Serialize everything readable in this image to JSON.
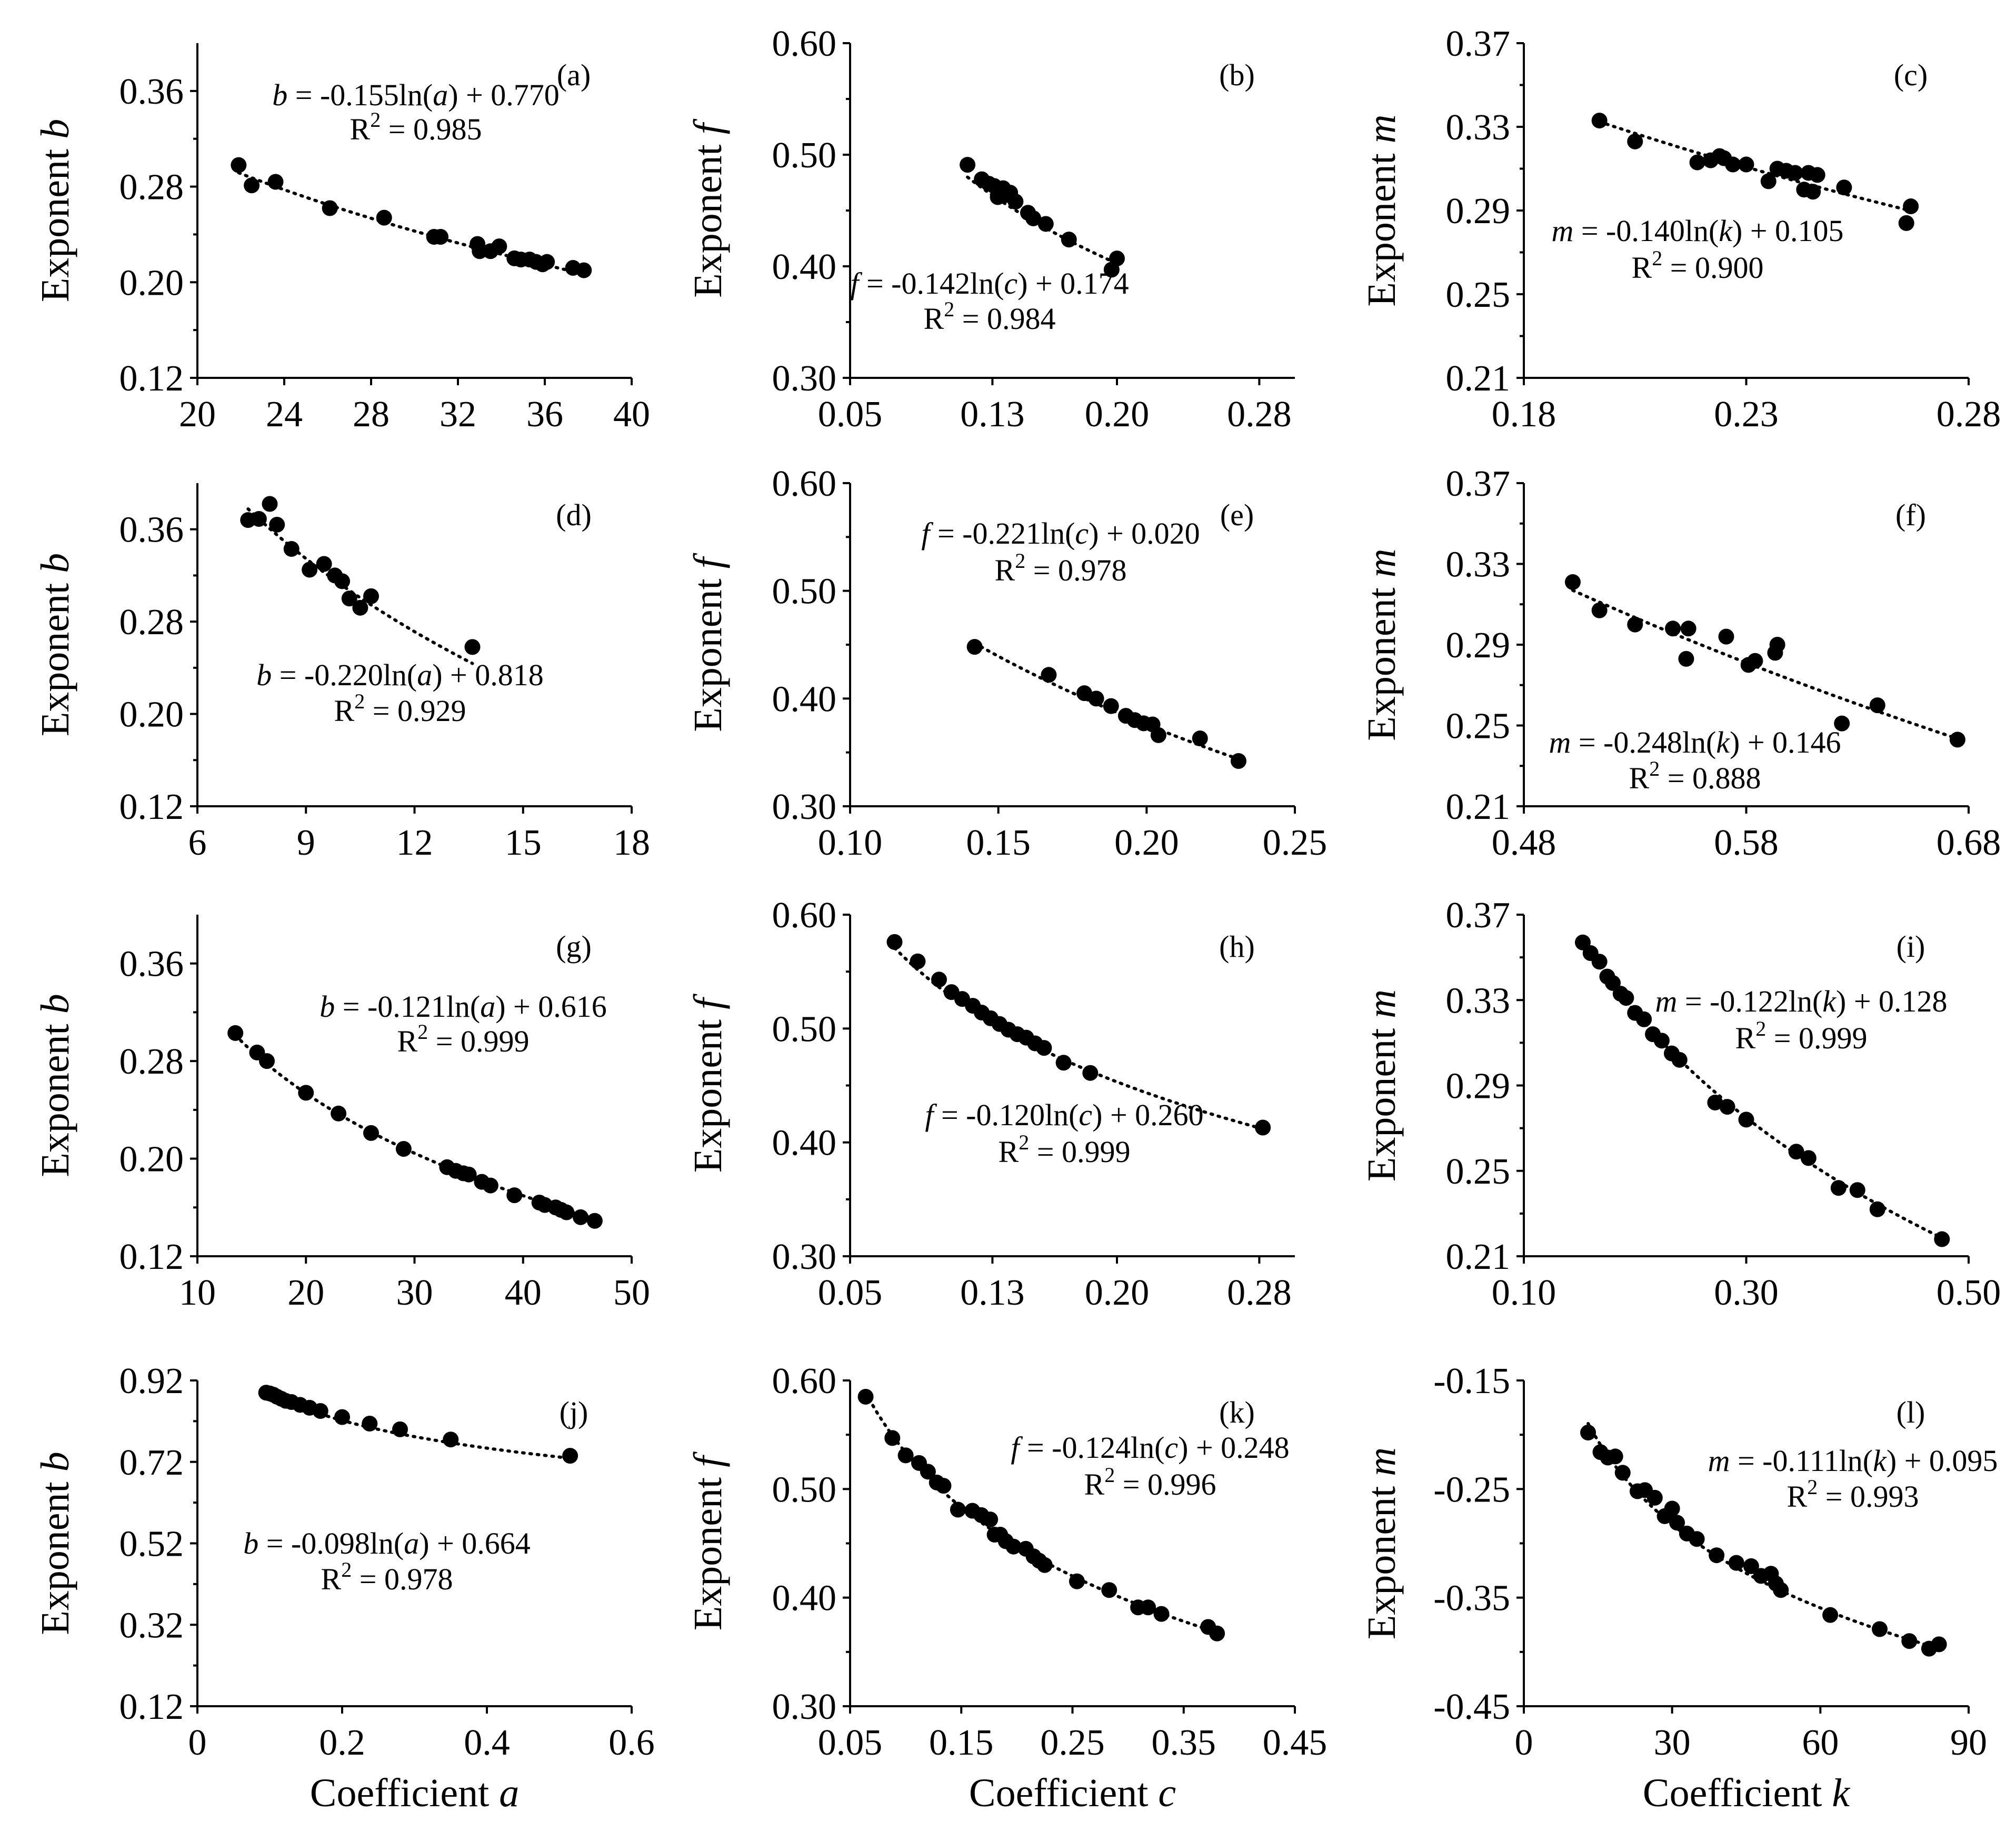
{
  "chart_data": [
    {
      "id": "a",
      "type": "scatter",
      "label": "(a)",
      "xlabel": "",
      "ylabel": "Exponent",
      "ylabel_var": "b",
      "xlim": [
        20,
        40
      ],
      "xticks": [
        20,
        24,
        28,
        32,
        36,
        40
      ],
      "xdecimals": 0,
      "ylim": [
        0.12,
        0.4
      ],
      "yticks": [
        0.12,
        0.2,
        0.28,
        0.36
      ],
      "ydecimals": 2,
      "x": [
        21.9,
        22.5,
        23.6,
        26.1,
        28.6,
        30.9,
        31.2,
        32.9,
        33.0,
        33.5,
        33.9,
        34.6,
        34.9,
        35.3,
        35.6,
        35.9,
        36.1,
        37.3,
        37.8
      ],
      "y": [
        0.298,
        0.281,
        0.284,
        0.262,
        0.254,
        0.238,
        0.238,
        0.232,
        0.226,
        0.226,
        0.23,
        0.22,
        0.219,
        0.219,
        0.217,
        0.215,
        0.217,
        0.212,
        0.21
      ],
      "fit": {
        "var": "b",
        "arg": "a",
        "coef": "-0.155",
        "intercept": "+ 0.770",
        "r2": "0.985",
        "c1": -0.155,
        "c0": 0.77
      },
      "equation": {
        "lhs": "b",
        "mid": " = -0.155ln(",
        "arg": "a",
        "rhs": ")  + 0.770",
        "r2": "R",
        "r2sup": "2",
        "r2val": " = 0.985"
      }
    },
    {
      "id": "b",
      "type": "scatter",
      "label": "(b)",
      "xlabel": "",
      "ylabel": "Exponent",
      "ylabel_var": "f",
      "xlim": [
        0.05,
        0.3
      ],
      "xticks": [
        0.05,
        0.13,
        0.2,
        0.28
      ],
      "xdecimals": 2,
      "ylim": [
        0.3,
        0.6
      ],
      "yticks": [
        0.3,
        0.4,
        0.5,
        0.6
      ],
      "ydecimals": 2,
      "x": [
        0.116,
        0.124,
        0.128,
        0.131,
        0.133,
        0.136,
        0.138,
        0.14,
        0.143,
        0.15,
        0.153,
        0.16,
        0.173,
        0.197,
        0.2
      ],
      "y": [
        0.491,
        0.478,
        0.474,
        0.472,
        0.462,
        0.47,
        0.464,
        0.466,
        0.458,
        0.448,
        0.443,
        0.438,
        0.424,
        0.397,
        0.407
      ],
      "fit": {
        "c1": -0.142,
        "c0": 0.174
      },
      "equation": {
        "lhs": "f",
        "mid": " = -0.142ln(",
        "arg": "c",
        "rhs": ")  + 0.174",
        "r2": "R",
        "r2sup": "2",
        "r2val": " = 0.984"
      }
    },
    {
      "id": "c",
      "type": "scatter",
      "label": "(c)",
      "xlabel": "",
      "ylabel": "Exponent",
      "ylabel_var": "m",
      "xlim": [
        0.18,
        0.28
      ],
      "xticks": [
        0.18,
        0.23,
        0.28
      ],
      "xdecimals": 2,
      "ylim": [
        0.21,
        0.37
      ],
      "yticks": [
        0.21,
        0.25,
        0.29,
        0.33,
        0.37
      ],
      "ydecimals": 2,
      "x": [
        0.197,
        0.205,
        0.219,
        0.222,
        0.224,
        0.225,
        0.227,
        0.23,
        0.235,
        0.237,
        0.239,
        0.241,
        0.243,
        0.244,
        0.245,
        0.246,
        0.252,
        0.266,
        0.267
      ],
      "y": [
        0.333,
        0.323,
        0.313,
        0.314,
        0.316,
        0.315,
        0.312,
        0.312,
        0.304,
        0.31,
        0.309,
        0.308,
        0.3,
        0.308,
        0.299,
        0.307,
        0.301,
        0.284,
        0.292
      ],
      "fit": {
        "c1": -0.14,
        "c0": 0.105
      },
      "equation": {
        "lhs": "m",
        "mid": " = -0.140ln(",
        "arg": "k",
        "rhs": ")  + 0.105",
        "r2": "R",
        "r2sup": "2",
        "r2val": " = 0.900"
      }
    },
    {
      "id": "d",
      "type": "scatter",
      "label": "(d)",
      "xlabel": "",
      "ylabel": "Exponent",
      "ylabel_var": "b",
      "xlim": [
        6,
        18
      ],
      "xticks": [
        6,
        9,
        12,
        15,
        18
      ],
      "xdecimals": 0,
      "ylim": [
        0.12,
        0.4
      ],
      "yticks": [
        0.12,
        0.2,
        0.28,
        0.36
      ],
      "ydecimals": 2,
      "x": [
        7.4,
        7.7,
        8.0,
        8.2,
        8.6,
        9.1,
        9.5,
        9.8,
        10.0,
        10.2,
        10.5,
        10.8,
        13.6
      ],
      "y": [
        0.368,
        0.369,
        0.382,
        0.364,
        0.343,
        0.325,
        0.33,
        0.32,
        0.315,
        0.3,
        0.292,
        0.302,
        0.258
      ],
      "fit": {
        "c1": -0.22,
        "c0": 0.818
      },
      "equation": {
        "lhs": "b",
        "mid": " = -0.220ln(",
        "arg": "a",
        "rhs": ")  + 0.818",
        "r2": "R",
        "r2sup": "2",
        "r2val": " = 0.929"
      }
    },
    {
      "id": "e",
      "type": "scatter",
      "label": "(e)",
      "xlabel": "",
      "ylabel": "Exponent",
      "ylabel_var": "f",
      "xlim": [
        0.1,
        0.25
      ],
      "xticks": [
        0.1,
        0.15,
        0.2,
        0.25
      ],
      "xdecimals": 2,
      "ylim": [
        0.3,
        0.6
      ],
      "yticks": [
        0.3,
        0.4,
        0.5,
        0.6
      ],
      "ydecimals": 2,
      "x": [
        0.142,
        0.167,
        0.179,
        0.183,
        0.188,
        0.193,
        0.196,
        0.199,
        0.202,
        0.204,
        0.218,
        0.231
      ],
      "y": [
        0.448,
        0.422,
        0.405,
        0.4,
        0.393,
        0.384,
        0.38,
        0.377,
        0.376,
        0.366,
        0.363,
        0.342
      ],
      "fit": {
        "c1": -0.221,
        "c0": 0.02
      },
      "equation": {
        "lhs": "f",
        "mid": " = -0.221ln(",
        "arg": "c",
        "rhs": ")  + 0.020",
        "r2": "R",
        "r2sup": "2",
        "r2val": " = 0.978"
      }
    },
    {
      "id": "f",
      "type": "scatter",
      "label": "(f)",
      "xlabel": "",
      "ylabel": "Exponent",
      "ylabel_var": "m",
      "xlim": [
        0.48,
        0.68
      ],
      "xticks": [
        0.48,
        0.58,
        0.68
      ],
      "xdecimals": 2,
      "ylim": [
        0.21,
        0.37
      ],
      "yticks": [
        0.21,
        0.25,
        0.29,
        0.33,
        0.37
      ],
      "ydecimals": 2,
      "x": [
        0.502,
        0.514,
        0.53,
        0.547,
        0.553,
        0.554,
        0.571,
        0.581,
        0.584,
        0.593,
        0.594,
        0.623,
        0.639,
        0.675
      ],
      "y": [
        0.321,
        0.307,
        0.3,
        0.298,
        0.283,
        0.298,
        0.294,
        0.28,
        0.282,
        0.286,
        0.29,
        0.251,
        0.26,
        0.243
      ],
      "fit": {
        "c1": -0.248,
        "c0": 0.146
      },
      "equation": {
        "lhs": "m",
        "mid": " = -0.248ln(",
        "arg": "k",
        "rhs": ")  + 0.146",
        "r2": "R",
        "r2sup": "2",
        "r2val": " = 0.888"
      }
    },
    {
      "id": "g",
      "type": "scatter",
      "label": "(g)",
      "xlabel": "",
      "ylabel": "Exponent",
      "ylabel_var": "b",
      "xlim": [
        10,
        50
      ],
      "xticks": [
        10,
        20,
        30,
        40,
        50
      ],
      "xdecimals": 0,
      "ylim": [
        0.12,
        0.4
      ],
      "yticks": [
        0.12,
        0.2,
        0.28,
        0.36
      ],
      "ydecimals": 2,
      "x": [
        13.5,
        15.5,
        16.4,
        20.0,
        23.0,
        26.0,
        29.0,
        33.0,
        33.8,
        34.5,
        35.0,
        36.2,
        37.0,
        39.2,
        41.5,
        42.0,
        43.0,
        43.5,
        44.0,
        45.3,
        46.6
      ],
      "y": [
        0.303,
        0.287,
        0.28,
        0.254,
        0.237,
        0.221,
        0.208,
        0.193,
        0.19,
        0.188,
        0.187,
        0.181,
        0.178,
        0.17,
        0.164,
        0.162,
        0.16,
        0.158,
        0.156,
        0.152,
        0.149
      ],
      "fit": {
        "c1": -0.121,
        "c0": 0.616
      },
      "equation": {
        "lhs": "b",
        "mid": " = -0.121ln(",
        "arg": "a",
        "rhs": ")  + 0.616",
        "r2": "R",
        "r2sup": "2",
        "r2val": " = 0.999"
      }
    },
    {
      "id": "h",
      "type": "scatter",
      "label": "(h)",
      "xlabel": "",
      "ylabel": "Exponent",
      "ylabel_var": "f",
      "xlim": [
        0.05,
        0.3
      ],
      "xticks": [
        0.05,
        0.13,
        0.2,
        0.28
      ],
      "xdecimals": 2,
      "ylim": [
        0.3,
        0.6
      ],
      "yticks": [
        0.3,
        0.4,
        0.5,
        0.6
      ],
      "ydecimals": 2,
      "x": [
        0.075,
        0.088,
        0.1,
        0.107,
        0.113,
        0.119,
        0.124,
        0.129,
        0.134,
        0.139,
        0.144,
        0.149,
        0.154,
        0.159,
        0.17,
        0.185,
        0.282
      ],
      "y": [
        0.576,
        0.559,
        0.543,
        0.532,
        0.526,
        0.52,
        0.514,
        0.509,
        0.504,
        0.499,
        0.495,
        0.492,
        0.487,
        0.483,
        0.47,
        0.461,
        0.413
      ],
      "fit": {
        "c1": -0.12,
        "c0": 0.26
      },
      "equation": {
        "lhs": "f",
        "mid": " = -0.120ln(",
        "arg": "c",
        "rhs": ")  + 0.260",
        "r2": "R",
        "r2sup": "2",
        "r2val": " = 0.999"
      }
    },
    {
      "id": "i",
      "type": "scatter",
      "label": "(i)",
      "xlabel": "",
      "ylabel": "Exponent",
      "ylabel_var": "m",
      "xlim": [
        0.1,
        0.5
      ],
      "xticks": [
        0.1,
        0.3,
        0.5
      ],
      "xdecimals": 2,
      "ylim": [
        0.21,
        0.37
      ],
      "yticks": [
        0.21,
        0.25,
        0.29,
        0.33,
        0.37
      ],
      "ydecimals": 2,
      "x": [
        0.153,
        0.16,
        0.168,
        0.175,
        0.18,
        0.187,
        0.192,
        0.2,
        0.208,
        0.216,
        0.224,
        0.233,
        0.24,
        0.272,
        0.283,
        0.3,
        0.345,
        0.356,
        0.383,
        0.4,
        0.418,
        0.476
      ],
      "y": [
        0.357,
        0.352,
        0.348,
        0.341,
        0.338,
        0.333,
        0.331,
        0.324,
        0.321,
        0.314,
        0.311,
        0.305,
        0.302,
        0.282,
        0.28,
        0.274,
        0.259,
        0.256,
        0.242,
        0.241,
        0.232,
        0.218
      ],
      "fit": {
        "c1": -0.122,
        "c0": 0.128
      },
      "equation": {
        "lhs": "m",
        "mid": " = -0.122ln(",
        "arg": "k",
        "rhs": ")  + 0.128",
        "r2": "R",
        "r2sup": "2",
        "r2val": " = 0.999"
      }
    },
    {
      "id": "j",
      "type": "scatter",
      "label": "(j)",
      "xlabel": "Coefficient",
      "xlabel_var": "a",
      "ylabel": "Exponent",
      "ylabel_var": "b",
      "xlim": [
        0,
        0.6
      ],
      "xticks": [
        0,
        0.2,
        0.4,
        0.6
      ],
      "xdecimals": "auto",
      "ylim": [
        0.12,
        0.92
      ],
      "yticks": [
        0.12,
        0.32,
        0.52,
        0.72,
        0.92
      ],
      "ydecimals": 2,
      "x": [
        0.095,
        0.1,
        0.105,
        0.11,
        0.116,
        0.122,
        0.13,
        0.142,
        0.155,
        0.17,
        0.2,
        0.238,
        0.28,
        0.35,
        0.515
      ],
      "y": [
        0.89,
        0.888,
        0.885,
        0.88,
        0.875,
        0.87,
        0.867,
        0.86,
        0.853,
        0.845,
        0.83,
        0.814,
        0.8,
        0.775,
        0.735
      ],
      "fit": {
        "c1": -0.098,
        "c0": 0.664
      },
      "equation": {
        "lhs": "b",
        "mid": " = -0.098ln(",
        "arg": "a",
        "rhs": ")  + 0.664",
        "r2": "R",
        "r2sup": "2",
        "r2val": " = 0.978"
      }
    },
    {
      "id": "k",
      "type": "scatter",
      "label": "(k)",
      "xlabel": "Coefficient",
      "xlabel_var": "c",
      "ylabel": "Exponent",
      "ylabel_var": "f",
      "xlim": [
        0.05,
        0.45
      ],
      "xticks": [
        0.05,
        0.15,
        0.25,
        0.35,
        0.45
      ],
      "xdecimals": 2,
      "ylim": [
        0.3,
        0.6
      ],
      "yticks": [
        0.3,
        0.4,
        0.5,
        0.6
      ],
      "ydecimals": 2,
      "x": [
        0.064,
        0.088,
        0.1,
        0.112,
        0.12,
        0.128,
        0.134,
        0.147,
        0.16,
        0.168,
        0.176,
        0.18,
        0.185,
        0.19,
        0.197,
        0.208,
        0.215,
        0.22,
        0.225,
        0.254,
        0.283,
        0.309,
        0.318,
        0.33,
        0.372,
        0.38
      ],
      "y": [
        0.585,
        0.547,
        0.531,
        0.524,
        0.516,
        0.506,
        0.503,
        0.481,
        0.48,
        0.476,
        0.472,
        0.458,
        0.458,
        0.452,
        0.447,
        0.445,
        0.438,
        0.434,
        0.43,
        0.415,
        0.407,
        0.391,
        0.391,
        0.385,
        0.373,
        0.367
      ],
      "fit": {
        "c1": -0.124,
        "c0": 0.248
      },
      "equation": {
        "lhs": "f",
        "mid": " = -0.124ln(",
        "arg": "c",
        "rhs": ")  + 0.248",
        "r2": "R",
        "r2sup": "2",
        "r2val": " = 0.996"
      }
    },
    {
      "id": "l",
      "type": "scatter",
      "label": "(l)",
      "xlabel": "Coefficient",
      "xlabel_var": "k",
      "ylabel": "Exponent",
      "ylabel_var": "m",
      "xlim": [
        0,
        90
      ],
      "xticks": [
        0,
        30,
        60,
        90
      ],
      "xdecimals": 0,
      "ylim": [
        -0.45,
        -0.15
      ],
      "yticks": [
        -0.45,
        -0.35,
        -0.25,
        -0.15
      ],
      "ydecimals": 2,
      "x": [
        13,
        15.5,
        17,
        18.5,
        20,
        23,
        24.5,
        26.5,
        28.5,
        30,
        31,
        33,
        35,
        39,
        43,
        46,
        48,
        50,
        51,
        52,
        62,
        72,
        78,
        82,
        84
      ],
      "y": [
        -0.198,
        -0.216,
        -0.221,
        -0.22,
        -0.235,
        -0.252,
        -0.251,
        -0.258,
        -0.275,
        -0.268,
        -0.281,
        -0.291,
        -0.296,
        -0.311,
        -0.318,
        -0.321,
        -0.33,
        -0.328,
        -0.337,
        -0.343,
        -0.366,
        -0.379,
        -0.39,
        -0.397,
        -0.393
      ],
      "fit": {
        "c1": -0.111,
        "c0": 0.095
      },
      "equation": {
        "lhs": "m",
        "mid": " = -0.111ln(",
        "arg": "k",
        "rhs": ")  + 0.095",
        "r2": "R",
        "r2sup": "2",
        "r2val": " = 0.993"
      }
    }
  ]
}
